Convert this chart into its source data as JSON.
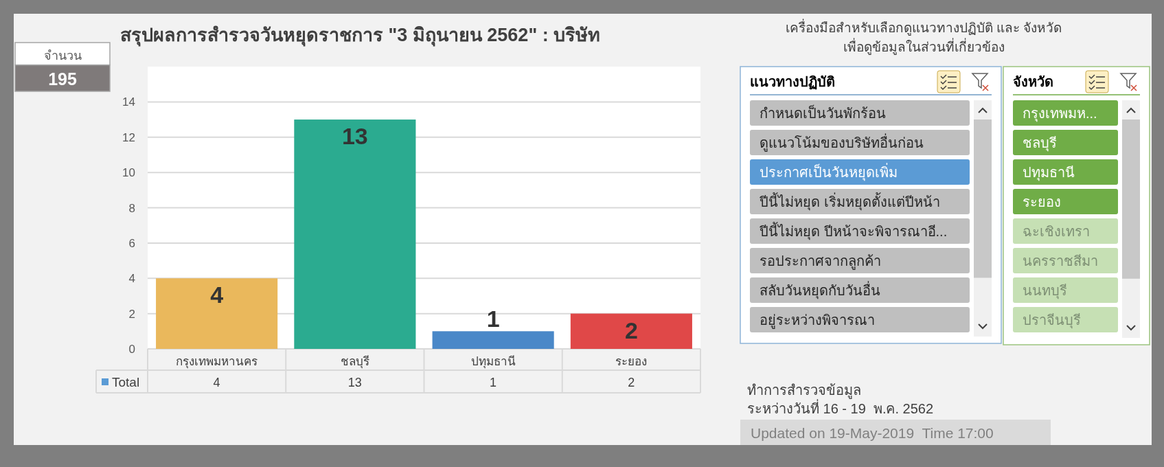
{
  "chart_data": [
    {
      "type": "other",
      "title": "จำนวน",
      "annotations": [
        "195"
      ]
    },
    {
      "type": "bar",
      "title": "สรุปผลการสำรวจวันหยุดราชการ \"3 มิถุนายน 2562\" : บริษัท",
      "categories": [
        "กรุงเทพมหานคร",
        "ชลบุรี",
        "ปทุมธานี",
        "ระยอง"
      ],
      "series": [
        {
          "name": "Total",
          "color": "#5b9bd5",
          "colors": [
            "#eab85c",
            "#2bab90",
            "#4a88c8",
            "#e04848"
          ],
          "values": [
            4,
            13,
            1,
            2
          ]
        }
      ],
      "ylim": [
        0,
        16
      ],
      "yticks": [
        0,
        2,
        4,
        6,
        8,
        10,
        12,
        14
      ],
      "grid": "y",
      "data_labels": true,
      "legend": "bottom",
      "annotations": [
        {
          "text": "4",
          "x": "กรุงเทพมหานคร",
          "y": 4
        },
        {
          "text": "13",
          "x": "ชลบุรี",
          "y": 13
        },
        {
          "text": "1",
          "x": "ปทุมธานี",
          "y": 1
        },
        {
          "text": "2",
          "x": "ระยอง",
          "y": 2
        }
      ]
    },
    {
      "type": "other",
      "annotations": [
        "เครื่องมือสำหรับเลือกดูแนวทางปฏิบัติ และ จังหวัด",
        "เพื่อดูข้อมูลในส่วนที่เกี่ยวข้อง"
      ]
    },
    {
      "type": "other",
      "title": "แนวทางปฏิบัติ",
      "categories": [
        "กำหนดเป็นวันพักร้อน",
        "ดูแนวโน้มของบริษัทอื่นก่อน",
        "ประกาศเป็นวันหยุดเพิ่ม",
        "ปีนี้ไม่หยุด เริ่มหยุดตั้งแต่ปีหน้า",
        "ปีนี้ไม่หยุด ปีหน้าจะพิจารณาอี...",
        "รอประกาศจากลูกค้า",
        "สลับวันหยุดกับวันอื่น",
        "อยู่ระหว่างพิจารณา"
      ],
      "colors": [
        "#bfbfbf",
        "#bfbfbf",
        "#5b9bd5",
        "#bfbfbf",
        "#bfbfbf",
        "#bfbfbf",
        "#bfbfbf",
        "#bfbfbf"
      ]
    },
    {
      "type": "other",
      "title": "จังหวัด",
      "categories": [
        "กรุงเทพมห...",
        "ชลบุรี",
        "ปทุมธานี",
        "ระยอง",
        "ฉะเชิงเทรา",
        "นครราชสีมา",
        "นนทบุรี",
        "ปราจีนบุรี"
      ],
      "colors": [
        "#70ad47",
        "#70ad47",
        "#70ad47",
        "#70ad47",
        "#c6e0b4",
        "#c6e0b4",
        "#c6e0b4",
        "#c6e0b4"
      ]
    },
    {
      "type": "other",
      "annotations": [
        "ทำการสำรวจข้อมูล",
        "ระหว่างวันที่ 16 - 19  พ.ค. 2562",
        "Updated on 19-May-2019  Time 17:00"
      ]
    }
  ]
}
